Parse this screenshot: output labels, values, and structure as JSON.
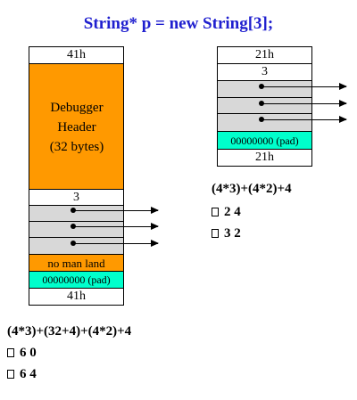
{
  "title": "String* p = new String[3];",
  "left_block": {
    "top_guard": "41h",
    "header_lines": [
      "Debugger",
      "Header",
      "(32 bytes)"
    ],
    "count": "3",
    "no_mans_land": "no man land",
    "pad": "00000000 (pad)",
    "bottom_guard": "41h"
  },
  "right_block": {
    "top_guard": "21h",
    "count": "3",
    "pad": "00000000 (pad)",
    "bottom_guard": "21h"
  },
  "right_calc": {
    "formula": "(4*3)+(4*2)+4",
    "answers": [
      "2 4",
      "3 2"
    ]
  },
  "left_calc": {
    "formula": "(4*3)+(32+4)+(4*2)+4",
    "answers": [
      "6 0",
      "6 4"
    ]
  },
  "colors": {
    "title": "#1f1fcf",
    "header": "#ff9900",
    "pad": "#00ffcc",
    "slot": "#d8d8d8"
  }
}
